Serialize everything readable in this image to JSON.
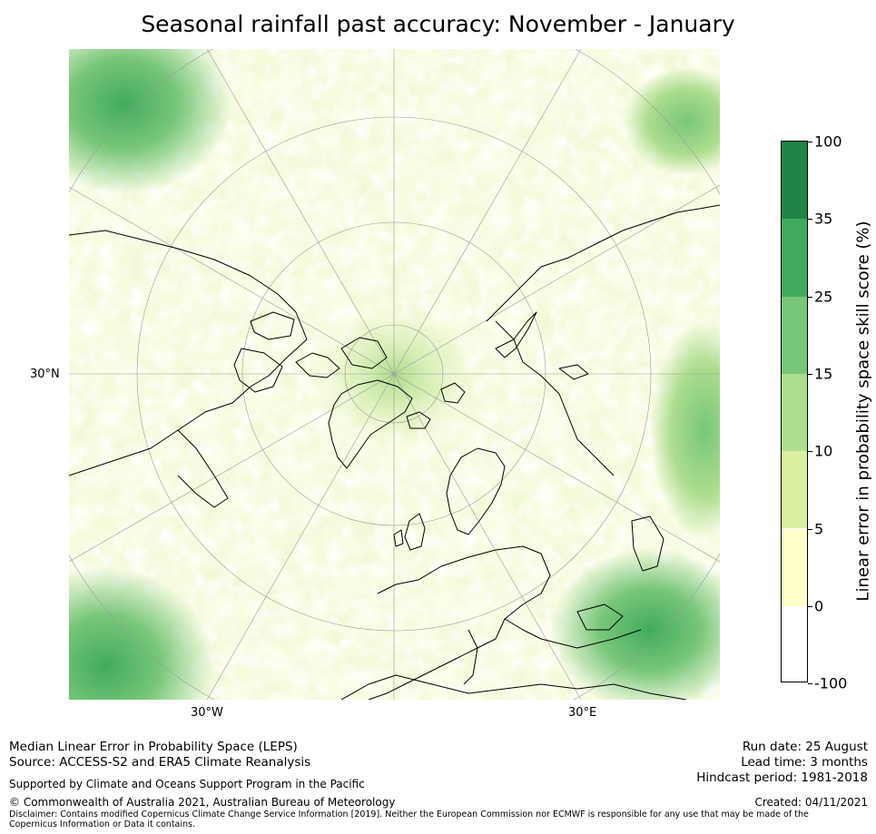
{
  "title": "Seasonal rainfall past accuracy: November - January",
  "map": {
    "lat_label": "30°N",
    "lon_labels": [
      "30°W",
      "30°E"
    ]
  },
  "colorbar": {
    "title": "Linear error in probability space skill score (%)",
    "ticks": [
      "100",
      "35",
      "25",
      "15",
      "10",
      "5",
      "0",
      "-100"
    ],
    "colors": [
      "#1f8446",
      "#41ab5d",
      "#78c679",
      "#addd8e",
      "#d9f0a3",
      "#ffffcc",
      "#ffffff"
    ]
  },
  "footer": {
    "line1": "Median Linear Error in Probability Space (LEPS)",
    "line2": "Source: ACCESS-S2 and ERA5 Climate Reanalysis",
    "support": "Supported by Climate and Oceans Support Program in the Pacific",
    "copyright": "© Commonwealth of Australia 2021, Australian Bureau of Meteorology",
    "disclaimer": "Disclaimer: Contains modified Copernicus Climate Change Service Information [2019]. Neither the European Commission nor ECMWF is responsible for any use that may be made of the Copernicus Information or Data it contains.",
    "run_date": "Run date: 25 August",
    "lead_time": "Lead time: 3 months",
    "hindcast": "Hindcast period: 1981-2018",
    "created": "Created: 04/11/2021"
  }
}
